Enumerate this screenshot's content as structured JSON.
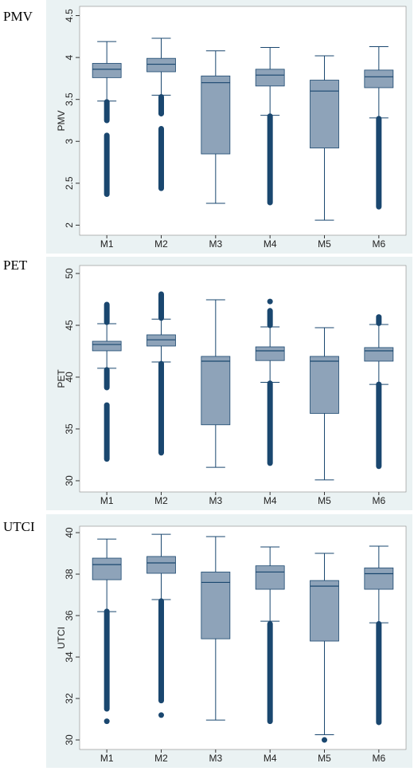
{
  "chart_data": [
    {
      "type": "box",
      "title": "PMV",
      "y_label": "PMV",
      "categories": [
        "M1",
        "M2",
        "M3",
        "M4",
        "M5",
        "M6"
      ],
      "box_color": "#8ea3b9",
      "outlier_color": "#1a476f",
      "ylim": [
        1.88,
        4.61
      ],
      "yticks": [
        2,
        2.5,
        3,
        3.5,
        4,
        4.5
      ],
      "boxes": [
        {
          "whisker_low": 3.48,
          "q1": 3.76,
          "median": 3.86,
          "q3": 3.93,
          "whisker_high": 4.19,
          "outlier_ranges": [
            [
              3.25,
              3.47
            ],
            [
              2.37,
              3.07
            ]
          ]
        },
        {
          "whisker_low": 3.55,
          "q1": 3.83,
          "median": 3.92,
          "q3": 3.99,
          "whisker_high": 4.23,
          "outlier_ranges": [
            [
              3.33,
              3.53
            ],
            [
              2.44,
              3.15
            ]
          ]
        },
        {
          "whisker_low": 2.26,
          "q1": 2.85,
          "median": 3.7,
          "q3": 3.78,
          "whisker_high": 4.08
        },
        {
          "whisker_low": 3.31,
          "q1": 3.66,
          "median": 3.79,
          "q3": 3.86,
          "whisker_high": 4.12,
          "outlier_ranges": [
            [
              2.27,
              3.3
            ]
          ]
        },
        {
          "whisker_low": 2.06,
          "q1": 2.92,
          "median": 3.6,
          "q3": 3.73,
          "whisker_high": 4.02
        },
        {
          "whisker_low": 3.28,
          "q1": 3.64,
          "median": 3.77,
          "q3": 3.85,
          "whisker_high": 4.13,
          "outlier_ranges": [
            [
              2.22,
              3.27
            ]
          ]
        }
      ]
    },
    {
      "type": "box",
      "title": "PET",
      "y_label": "PET",
      "categories": [
        "M1",
        "M2",
        "M3",
        "M4",
        "M5",
        "M6"
      ],
      "box_color": "#8ea3b9",
      "outlier_color": "#1a476f",
      "ylim": [
        28.92,
        50.77
      ],
      "yticks": [
        30,
        35,
        40,
        45,
        50
      ],
      "boxes": [
        {
          "whisker_low": 40.85,
          "q1": 42.54,
          "median": 43.15,
          "q3": 43.46,
          "whisker_high": 45.15,
          "outlier_ranges": [
            [
              45.3,
              47
            ],
            [
              39,
              40.7
            ],
            [
              32.1,
              37.3
            ]
          ]
        },
        {
          "whisker_low": 41.46,
          "q1": 43,
          "median": 43.6,
          "q3": 44.08,
          "whisker_high": 45.6,
          "outlier_ranges": [
            [
              45.7,
              48
            ],
            [
              32.7,
              41.3
            ]
          ]
        },
        {
          "whisker_low": 31.3,
          "q1": 35.4,
          "median": 41.54,
          "q3": 42,
          "whisker_high": 47.46
        },
        {
          "whisker_low": 39.5,
          "q1": 41.6,
          "median": 42.54,
          "q3": 42.92,
          "whisker_high": 44.85,
          "outlier_ranges": [
            [
              45,
              46.4
            ],
            [
              31.7,
              39.4
            ]
          ],
          "outliers": [
            47.3
          ]
        },
        {
          "whisker_low": 30.08,
          "q1": 36.5,
          "median": 41.54,
          "q3": 42,
          "whisker_high": 44.77
        },
        {
          "whisker_low": 39.3,
          "q1": 41.54,
          "median": 42.54,
          "q3": 42.85,
          "whisker_high": 45.08,
          "outlier_ranges": [
            [
              45.2,
              45.8
            ],
            [
              31.4,
              39.3
            ]
          ]
        }
      ]
    },
    {
      "type": "box",
      "title": "UTCI",
      "y_label": "UTCI",
      "categories": [
        "M1",
        "M2",
        "M3",
        "M4",
        "M5",
        "M6"
      ],
      "box_color": "#8ea3b9",
      "outlier_color": "#1a476f",
      "ylim": [
        29.54,
        40.31
      ],
      "yticks": [
        30,
        32,
        34,
        36,
        38,
        40
      ],
      "boxes": [
        {
          "whisker_low": 36.19,
          "q1": 37.73,
          "median": 38.46,
          "q3": 38.77,
          "whisker_high": 39.69,
          "outlier_ranges": [
            [
              31.5,
              36.2
            ]
          ],
          "outliers": [
            30.9
          ]
        },
        {
          "whisker_low": 36.77,
          "q1": 38.04,
          "median": 38.54,
          "q3": 38.85,
          "whisker_high": 39.92,
          "outlier_ranges": [
            [
              31.9,
              36.7
            ]
          ],
          "outliers": [
            31.2
          ]
        },
        {
          "whisker_low": 30.96,
          "q1": 34.88,
          "median": 37.6,
          "q3": 38.1,
          "whisker_high": 39.81
        },
        {
          "whisker_low": 35.73,
          "q1": 37.27,
          "median": 38.1,
          "q3": 38.4,
          "whisker_high": 39.31,
          "outlier_ranges": [
            [
              30.9,
              35.6
            ]
          ]
        },
        {
          "whisker_low": 30.25,
          "q1": 34.77,
          "median": 37.42,
          "q3": 37.69,
          "whisker_high": 39,
          "outliers": [
            30
          ]
        },
        {
          "whisker_low": 35.65,
          "q1": 37.27,
          "median": 38.02,
          "q3": 38.3,
          "whisker_high": 39.35,
          "outlier_ranges": [
            [
              30.85,
              35.6
            ]
          ]
        }
      ]
    }
  ]
}
